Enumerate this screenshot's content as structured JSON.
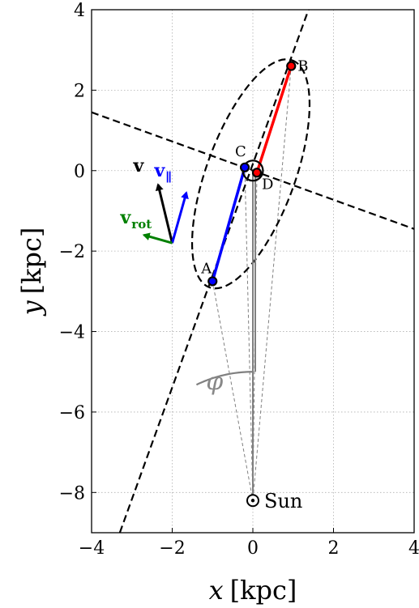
{
  "chart_data": {
    "type": "diagram",
    "xlabel": {
      "var": "x",
      "unit": "[kpc]"
    },
    "ylabel": {
      "var": "y",
      "unit": "[kpc]"
    },
    "xlim": [
      -4,
      4
    ],
    "ylim": [
      -9,
      4
    ],
    "xticks": [
      -4,
      -2,
      0,
      2,
      4
    ],
    "yticks": [
      4,
      2,
      0,
      -2,
      -4,
      -6,
      -8
    ],
    "xtick_labels": [
      "−4",
      "−2",
      "0",
      "2",
      "4"
    ],
    "ytick_labels": [
      "4",
      "2",
      "0",
      "−2",
      "−4",
      "−6",
      "−8"
    ],
    "grid": true,
    "points": {
      "A": {
        "label": "A",
        "x": -1.0,
        "y": -2.75
      },
      "B": {
        "label": "B",
        "x": 0.95,
        "y": 2.6
      },
      "C": {
        "label": "C",
        "x": -0.2,
        "y": 0.08
      },
      "D": {
        "label": "D",
        "x": 0.1,
        "y": -0.05
      },
      "Sun": {
        "label": "Sun",
        "x": 0.0,
        "y": -8.2
      }
    },
    "segments": [
      {
        "name": "A-C",
        "from": "A",
        "to": "C",
        "color": "#0000ff"
      },
      {
        "name": "D-B",
        "from": "D",
        "to": "B",
        "color": "#ff0000"
      }
    ],
    "sightlines_to_sun": [
      "A",
      "B",
      "C",
      "D"
    ],
    "dashed_lines": [
      {
        "name": "major-axis",
        "p1": [
          -3.3,
          -9.0
        ],
        "p2": [
          1.38,
          4.0
        ]
      },
      {
        "name": "minor-axis",
        "p1": [
          -4.0,
          1.45
        ],
        "p2": [
          4.0,
          -1.45
        ]
      }
    ],
    "ellipse": {
      "cx": -0.05,
      "cy": -0.08,
      "semi_major": 3.0,
      "semi_minor": 1.1,
      "angle_deg": 70
    },
    "center_circle": {
      "x": 0.0,
      "y": 0.0,
      "radius": 0.25
    },
    "angle_marker": {
      "label": "φ",
      "vertex": [
        0.0,
        -8.2
      ],
      "radius": 3.2
    },
    "vectors": {
      "origin": [
        -2.0,
        -1.8
      ],
      "v": {
        "label": "v",
        "dx": -0.35,
        "dy": 1.45,
        "color": "#000000"
      },
      "v_parallel": {
        "label": "v",
        "subscript": "∥",
        "dx": 0.35,
        "dy": 1.25,
        "color": "#0000ff"
      },
      "v_rot": {
        "label": "v",
        "subscript": "rot",
        "dx": -0.7,
        "dy": 0.2,
        "color": "#008000"
      }
    }
  }
}
